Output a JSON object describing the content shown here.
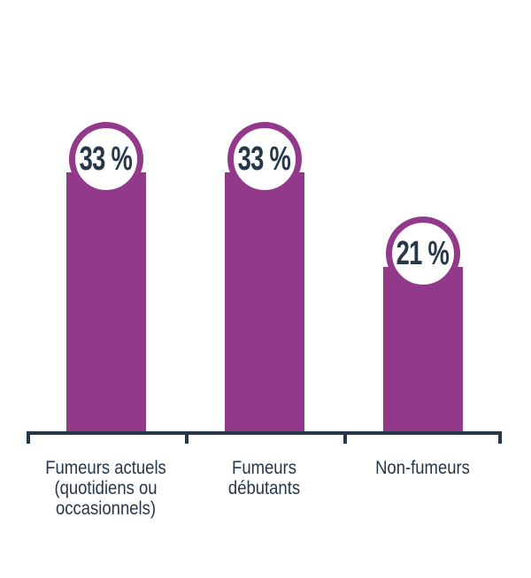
{
  "chart_data": {
    "type": "bar",
    "title": "",
    "xlabel": "",
    "ylabel": "",
    "unit": "%",
    "categories": [
      "Fumeurs actuels (quotidiens ou occasionnels)",
      "Fumeurs débutants",
      "Non-fumeurs"
    ],
    "category_lines": [
      [
        "Fumeurs actuels",
        "(quotidiens ou",
        "occasionnels)"
      ],
      [
        "Fumeurs",
        "débutants"
      ],
      [
        "Non-fumeurs"
      ]
    ],
    "values": [
      33,
      33,
      21
    ],
    "value_labels": [
      "33 %",
      "33 %",
      "21 %"
    ],
    "ylim": [
      0,
      40
    ],
    "grid": false,
    "legend": false,
    "colors": {
      "bar": "#93398B",
      "badge_ring": "#93398B",
      "badge_fill": "#FFFFFF",
      "value_text": "#26374A",
      "axis": "#26374A",
      "label_text": "#26374A"
    }
  }
}
